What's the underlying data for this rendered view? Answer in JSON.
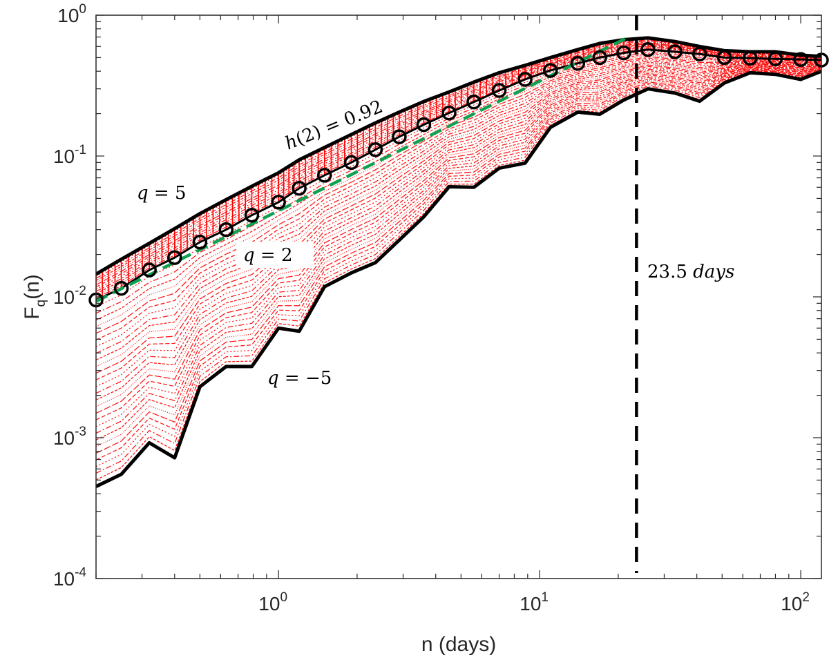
{
  "chart_data": {
    "type": "line",
    "xscale": "log",
    "yscale": "log",
    "xlim": [
      0.2,
      120
    ],
    "ylim": [
      0.0001,
      1
    ],
    "grid": false,
    "xlabel": "n (days)",
    "ylabel_main": "F",
    "ylabel_sub": "q",
    "ylabel_tail": "(n)",
    "x_ticks": [
      {
        "base": "10",
        "exp": "0",
        "value": 1
      },
      {
        "base": "10",
        "exp": "1",
        "value": 10
      },
      {
        "base": "10",
        "exp": "2",
        "value": 100
      }
    ],
    "y_ticks": [
      {
        "base": "10",
        "exp": "-4",
        "value": 0.0001
      },
      {
        "base": "10",
        "exp": "-3",
        "value": 0.001
      },
      {
        "base": "10",
        "exp": "-2",
        "value": 0.01
      },
      {
        "base": "10",
        "exp": "-1",
        "value": 0.1
      },
      {
        "base": "10",
        "exp": "0",
        "value": 1
      }
    ],
    "x": [
      0.2,
      0.25,
      0.32,
      0.4,
      0.5,
      0.63,
      0.79,
      1.0,
      1.2,
      1.5,
      1.9,
      2.35,
      2.9,
      3.6,
      4.5,
      5.6,
      7.0,
      8.8,
      11,
      14,
      17,
      21,
      26,
      33,
      41,
      51,
      64,
      80,
      100,
      120
    ],
    "series": [
      {
        "id": "q5",
        "color": "#000000",
        "values": [
          0.0145,
          0.0185,
          0.024,
          0.0305,
          0.039,
          0.049,
          0.061,
          0.076,
          0.094,
          0.115,
          0.142,
          0.172,
          0.205,
          0.244,
          0.285,
          0.335,
          0.39,
          0.44,
          0.5,
          0.57,
          0.63,
          0.67,
          0.69,
          0.65,
          0.6,
          0.56,
          0.55,
          0.55,
          0.52,
          0.51
        ]
      },
      {
        "id": "q2",
        "color": "#000000",
        "marker": "circle",
        "values": [
          0.0095,
          0.0115,
          0.0155,
          0.019,
          0.0245,
          0.03,
          0.038,
          0.047,
          0.059,
          0.073,
          0.09,
          0.111,
          0.137,
          0.167,
          0.202,
          0.242,
          0.292,
          0.35,
          0.405,
          0.455,
          0.5,
          0.54,
          0.57,
          0.55,
          0.53,
          0.5,
          0.495,
          0.49,
          0.485,
          0.48
        ]
      },
      {
        "id": "qm5",
        "color": "#000000",
        "values": [
          0.00045,
          0.00055,
          0.00092,
          0.00072,
          0.0023,
          0.0032,
          0.0032,
          0.006,
          0.0057,
          0.0118,
          0.0148,
          0.0175,
          0.0253,
          0.037,
          0.0605,
          0.06,
          0.082,
          0.089,
          0.16,
          0.205,
          0.198,
          0.25,
          0.3,
          0.28,
          0.245,
          0.33,
          0.39,
          0.38,
          0.35,
          0.4
        ]
      }
    ],
    "fill_color": "#ff0000",
    "fit_line": {
      "color": "#10a050",
      "slope": 0.92,
      "x_start": 0.2,
      "y_start": 0.0093,
      "x_end": 22
    },
    "vline": {
      "x": 23.5,
      "color": "#000000"
    },
    "annotations": {
      "h2": {
        "prefix": "h",
        "middle": "(2) = 0.92"
      },
      "q5": {
        "q": "q",
        "rest": " = 5"
      },
      "q2": {
        "q": "q",
        "rest": " = 2"
      },
      "qm5": {
        "q": "q",
        "rest": " = −5"
      },
      "days": {
        "num": "23.5 ",
        "unit": "days"
      }
    }
  }
}
